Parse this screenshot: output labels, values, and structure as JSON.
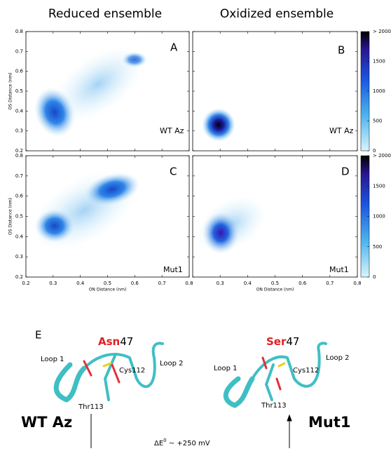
{
  "column_titles": [
    "Reduced ensemble",
    "Oxidized ensemble"
  ],
  "panels": [
    {
      "letter": "A",
      "label": "WT Az"
    },
    {
      "letter": "B",
      "label": "WT Az"
    },
    {
      "letter": "C",
      "label": "Mut1"
    },
    {
      "letter": "D",
      "label": "Mut1"
    }
  ],
  "axes": {
    "y_label": "OS Distance (nm)",
    "x_label": "ON Distance (nm)",
    "yticks": [
      "0.8",
      "0.7",
      "0.6",
      "0.5",
      "0.4",
      "0.3",
      "0.2"
    ],
    "xticks_left": [
      "0.2",
      "0.3",
      "0.4",
      "0.5",
      "0.6",
      "0.7",
      "0.8"
    ],
    "xticks_right": [
      "0.3",
      "0.4",
      "0.5",
      "0.6",
      "0.7",
      "0.8"
    ]
  },
  "colorbar": {
    "ticks": [
      "> 2000",
      "1500",
      "1000",
      "500",
      "0"
    ]
  },
  "panel_e": {
    "letter": "E",
    "wt": {
      "residue": "Asn",
      "number": "47",
      "loop1": "Loop 1",
      "loop2": "Loop 2",
      "cys": "Cys112",
      "thr": "Thr113",
      "name": "WT Az"
    },
    "mut": {
      "residue": "Ser",
      "number": "47",
      "loop1": "Loop 1",
      "loop2": "Loop 2",
      "cys": "Cys112",
      "thr": "Thr113",
      "name": "Mut1"
    },
    "delta": {
      "symbol": "ΔE",
      "sup": "0",
      "text": " ~ +250 mV"
    }
  }
}
